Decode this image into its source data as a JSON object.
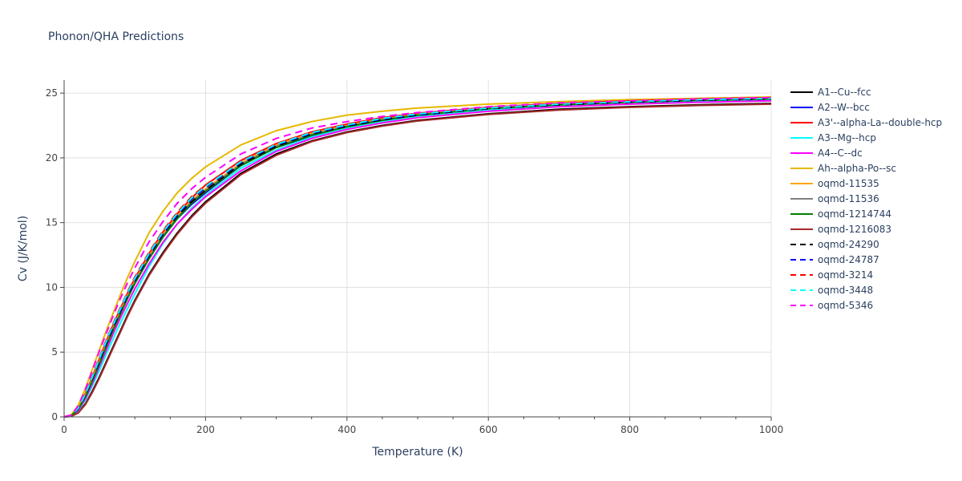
{
  "chart_data": {
    "type": "line",
    "title": "Phonon/QHA Predictions",
    "xlabel": "Temperature (K)",
    "ylabel": "Cv (J/K/mol)",
    "xlim": [
      0,
      1000
    ],
    "ylim": [
      0,
      26
    ],
    "x_ticks": [
      0,
      200,
      400,
      600,
      800,
      1000
    ],
    "y_ticks": [
      0,
      5,
      10,
      15,
      20,
      25
    ],
    "grid": true,
    "legend_position": "right",
    "x": [
      0,
      10,
      20,
      30,
      40,
      50,
      60,
      70,
      80,
      90,
      100,
      120,
      140,
      160,
      180,
      200,
      250,
      300,
      350,
      400,
      450,
      500,
      600,
      700,
      800,
      900,
      1000
    ],
    "series": [
      {
        "name": "A1--Cu--fcc",
        "color": "#000000",
        "dash": "solid",
        "values": [
          0,
          0.05,
          0.35,
          1.0,
          2.0,
          3.1,
          4.3,
          5.5,
          6.7,
          7.9,
          9.0,
          11.0,
          12.7,
          14.2,
          15.5,
          16.6,
          18.8,
          20.3,
          21.3,
          22.0,
          22.5,
          22.9,
          23.4,
          23.75,
          23.95,
          24.1,
          24.2
        ]
      },
      {
        "name": "A2--W--bcc",
        "color": "#0000ff",
        "dash": "solid",
        "values": [
          0,
          0.1,
          0.6,
          1.6,
          2.8,
          4.1,
          5.5,
          6.8,
          8.0,
          9.2,
          10.3,
          12.2,
          13.9,
          15.3,
          16.4,
          17.3,
          19.4,
          20.8,
          21.7,
          22.4,
          22.9,
          23.3,
          23.8,
          24.1,
          24.3,
          24.45,
          24.55
        ]
      },
      {
        "name": "A3'--alpha-La--double-hcp",
        "color": "#ff0000",
        "dash": "solid",
        "values": [
          0,
          0.12,
          0.7,
          1.8,
          3.1,
          4.5,
          5.9,
          7.2,
          8.4,
          9.6,
          10.7,
          12.6,
          14.3,
          15.7,
          16.9,
          17.9,
          19.8,
          21.1,
          22.0,
          22.6,
          23.1,
          23.4,
          23.9,
          24.2,
          24.35,
          24.5,
          24.6
        ]
      },
      {
        "name": "A3--Mg--hcp",
        "color": "#00ffff",
        "dash": "solid",
        "values": [
          0,
          0.07,
          0.45,
          1.3,
          2.4,
          3.6,
          4.9,
          6.1,
          7.3,
          8.4,
          9.5,
          11.6,
          13.4,
          14.9,
          16.1,
          17.1,
          19.2,
          20.6,
          21.6,
          22.3,
          22.8,
          23.2,
          23.7,
          24.05,
          24.25,
          24.4,
          24.5
        ]
      },
      {
        "name": "A4--C--dc",
        "color": "#ff00ff",
        "dash": "solid",
        "values": [
          0,
          0.08,
          0.5,
          1.4,
          2.6,
          3.9,
          5.2,
          6.5,
          7.7,
          8.8,
          9.9,
          11.8,
          13.5,
          14.9,
          16.0,
          17.0,
          19.0,
          20.5,
          21.5,
          22.2,
          22.7,
          23.1,
          23.6,
          23.95,
          24.15,
          24.3,
          24.4
        ]
      },
      {
        "name": "Ah--alpha-Po--sc",
        "color": "#e6b800",
        "dash": "solid",
        "values": [
          0,
          0.15,
          0.9,
          2.2,
          3.7,
          5.2,
          6.7,
          8.1,
          9.5,
          10.8,
          12.0,
          14.2,
          15.9,
          17.3,
          18.4,
          19.3,
          21.0,
          22.1,
          22.8,
          23.3,
          23.6,
          23.85,
          24.15,
          24.35,
          24.5,
          24.6,
          24.7
        ]
      },
      {
        "name": "oqmd-11535",
        "color": "#ffa500",
        "dash": "solid",
        "values": [
          0,
          0.1,
          0.65,
          1.7,
          3.0,
          4.3,
          5.7,
          7.0,
          8.2,
          9.4,
          10.5,
          12.4,
          14.1,
          15.5,
          16.7,
          17.6,
          19.6,
          21.0,
          21.9,
          22.5,
          23.0,
          23.35,
          23.85,
          24.15,
          24.35,
          24.5,
          24.6
        ]
      },
      {
        "name": "oqmd-11536",
        "color": "#808080",
        "dash": "solid",
        "values": [
          0,
          0.09,
          0.6,
          1.6,
          2.9,
          4.2,
          5.6,
          6.9,
          8.1,
          9.3,
          10.4,
          12.3,
          14.0,
          15.4,
          16.6,
          17.5,
          19.5,
          20.9,
          21.8,
          22.45,
          22.95,
          23.3,
          23.8,
          24.1,
          24.3,
          24.45,
          24.55
        ]
      },
      {
        "name": "oqmd-1214744",
        "color": "#008000",
        "dash": "solid",
        "values": [
          0,
          0.09,
          0.58,
          1.55,
          2.8,
          4.1,
          5.5,
          6.8,
          8.0,
          9.2,
          10.3,
          12.2,
          13.9,
          15.3,
          16.5,
          17.4,
          19.4,
          20.8,
          21.75,
          22.4,
          22.9,
          23.3,
          23.8,
          24.1,
          24.3,
          24.45,
          24.55
        ]
      },
      {
        "name": "oqmd-1216083",
        "color": "#a52a2a",
        "dash": "solid",
        "values": [
          0,
          0.04,
          0.3,
          0.95,
          1.9,
          3.0,
          4.2,
          5.4,
          6.6,
          7.8,
          8.9,
          10.9,
          12.6,
          14.1,
          15.4,
          16.5,
          18.7,
          20.2,
          21.25,
          21.95,
          22.45,
          22.85,
          23.35,
          23.7,
          23.9,
          24.05,
          24.15
        ]
      },
      {
        "name": "oqmd-24290",
        "color": "#000000",
        "dash": "dash",
        "values": [
          0,
          0.1,
          0.62,
          1.65,
          2.95,
          4.3,
          5.7,
          7.0,
          8.2,
          9.4,
          10.5,
          12.4,
          14.1,
          15.5,
          16.6,
          17.5,
          19.5,
          20.9,
          21.85,
          22.45,
          22.95,
          23.3,
          23.8,
          24.1,
          24.3,
          24.45,
          24.55
        ]
      },
      {
        "name": "oqmd-24787",
        "color": "#0000ff",
        "dash": "dash",
        "values": [
          0,
          0.11,
          0.66,
          1.72,
          3.05,
          4.4,
          5.8,
          7.1,
          8.3,
          9.5,
          10.6,
          12.5,
          14.2,
          15.6,
          16.8,
          17.7,
          19.65,
          21.0,
          21.9,
          22.5,
          23.0,
          23.35,
          23.85,
          24.15,
          24.35,
          24.5,
          24.6
        ]
      },
      {
        "name": "oqmd-3214",
        "color": "#ff0000",
        "dash": "dash",
        "values": [
          0,
          0.12,
          0.72,
          1.85,
          3.2,
          4.6,
          6.0,
          7.3,
          8.5,
          9.7,
          10.8,
          12.7,
          14.4,
          15.8,
          17.0,
          17.9,
          19.8,
          21.1,
          22.0,
          22.6,
          23.1,
          23.45,
          23.9,
          24.2,
          24.4,
          24.55,
          24.65
        ]
      },
      {
        "name": "oqmd-3448",
        "color": "#00ffff",
        "dash": "dash",
        "values": [
          0,
          0.11,
          0.68,
          1.75,
          3.1,
          4.5,
          5.9,
          7.2,
          8.4,
          9.6,
          10.7,
          12.6,
          14.3,
          15.7,
          16.9,
          17.8,
          19.7,
          21.05,
          21.95,
          22.55,
          23.05,
          23.4,
          23.85,
          24.15,
          24.35,
          24.5,
          24.6
        ]
      },
      {
        "name": "oqmd-5346",
        "color": "#ff00ff",
        "dash": "dash",
        "values": [
          0,
          0.14,
          0.85,
          2.1,
          3.6,
          5.1,
          6.5,
          7.9,
          9.2,
          10.4,
          11.5,
          13.5,
          15.1,
          16.5,
          17.6,
          18.5,
          20.3,
          21.5,
          22.3,
          22.8,
          23.2,
          23.5,
          23.95,
          24.25,
          24.4,
          24.55,
          24.65
        ]
      }
    ]
  }
}
